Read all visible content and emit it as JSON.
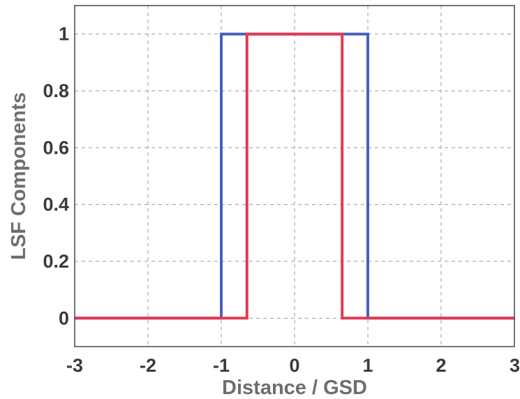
{
  "chart_data": {
    "type": "line",
    "xlabel": "Distance / GSD",
    "ylabel": "LSF Components",
    "xlim": [
      -3,
      3
    ],
    "ylim": [
      -0.1,
      1.1
    ],
    "xticks": [
      -3,
      -2,
      -1,
      0,
      1,
      2,
      3
    ],
    "yticks": [
      0,
      0.2,
      0.4,
      0.6,
      0.8,
      1
    ],
    "xtick_labels": [
      "-3",
      "-2",
      "-1",
      "0",
      "1",
      "2",
      "3"
    ],
    "ytick_labels": [
      "0",
      "0.2",
      "0.4",
      "0.6",
      "0.8",
      "1"
    ],
    "grid": true,
    "series": [
      {
        "color": "#4a5fbf",
        "x": [
          -3,
          -1,
          -1,
          1,
          1,
          3
        ],
        "y": [
          0,
          0,
          1,
          1,
          0,
          0
        ]
      },
      {
        "color": "#e23a52",
        "x": [
          -3,
          -0.65,
          -0.65,
          0.65,
          0.65,
          3
        ],
        "y": [
          0,
          0,
          1,
          1,
          0,
          0
        ]
      }
    ]
  }
}
